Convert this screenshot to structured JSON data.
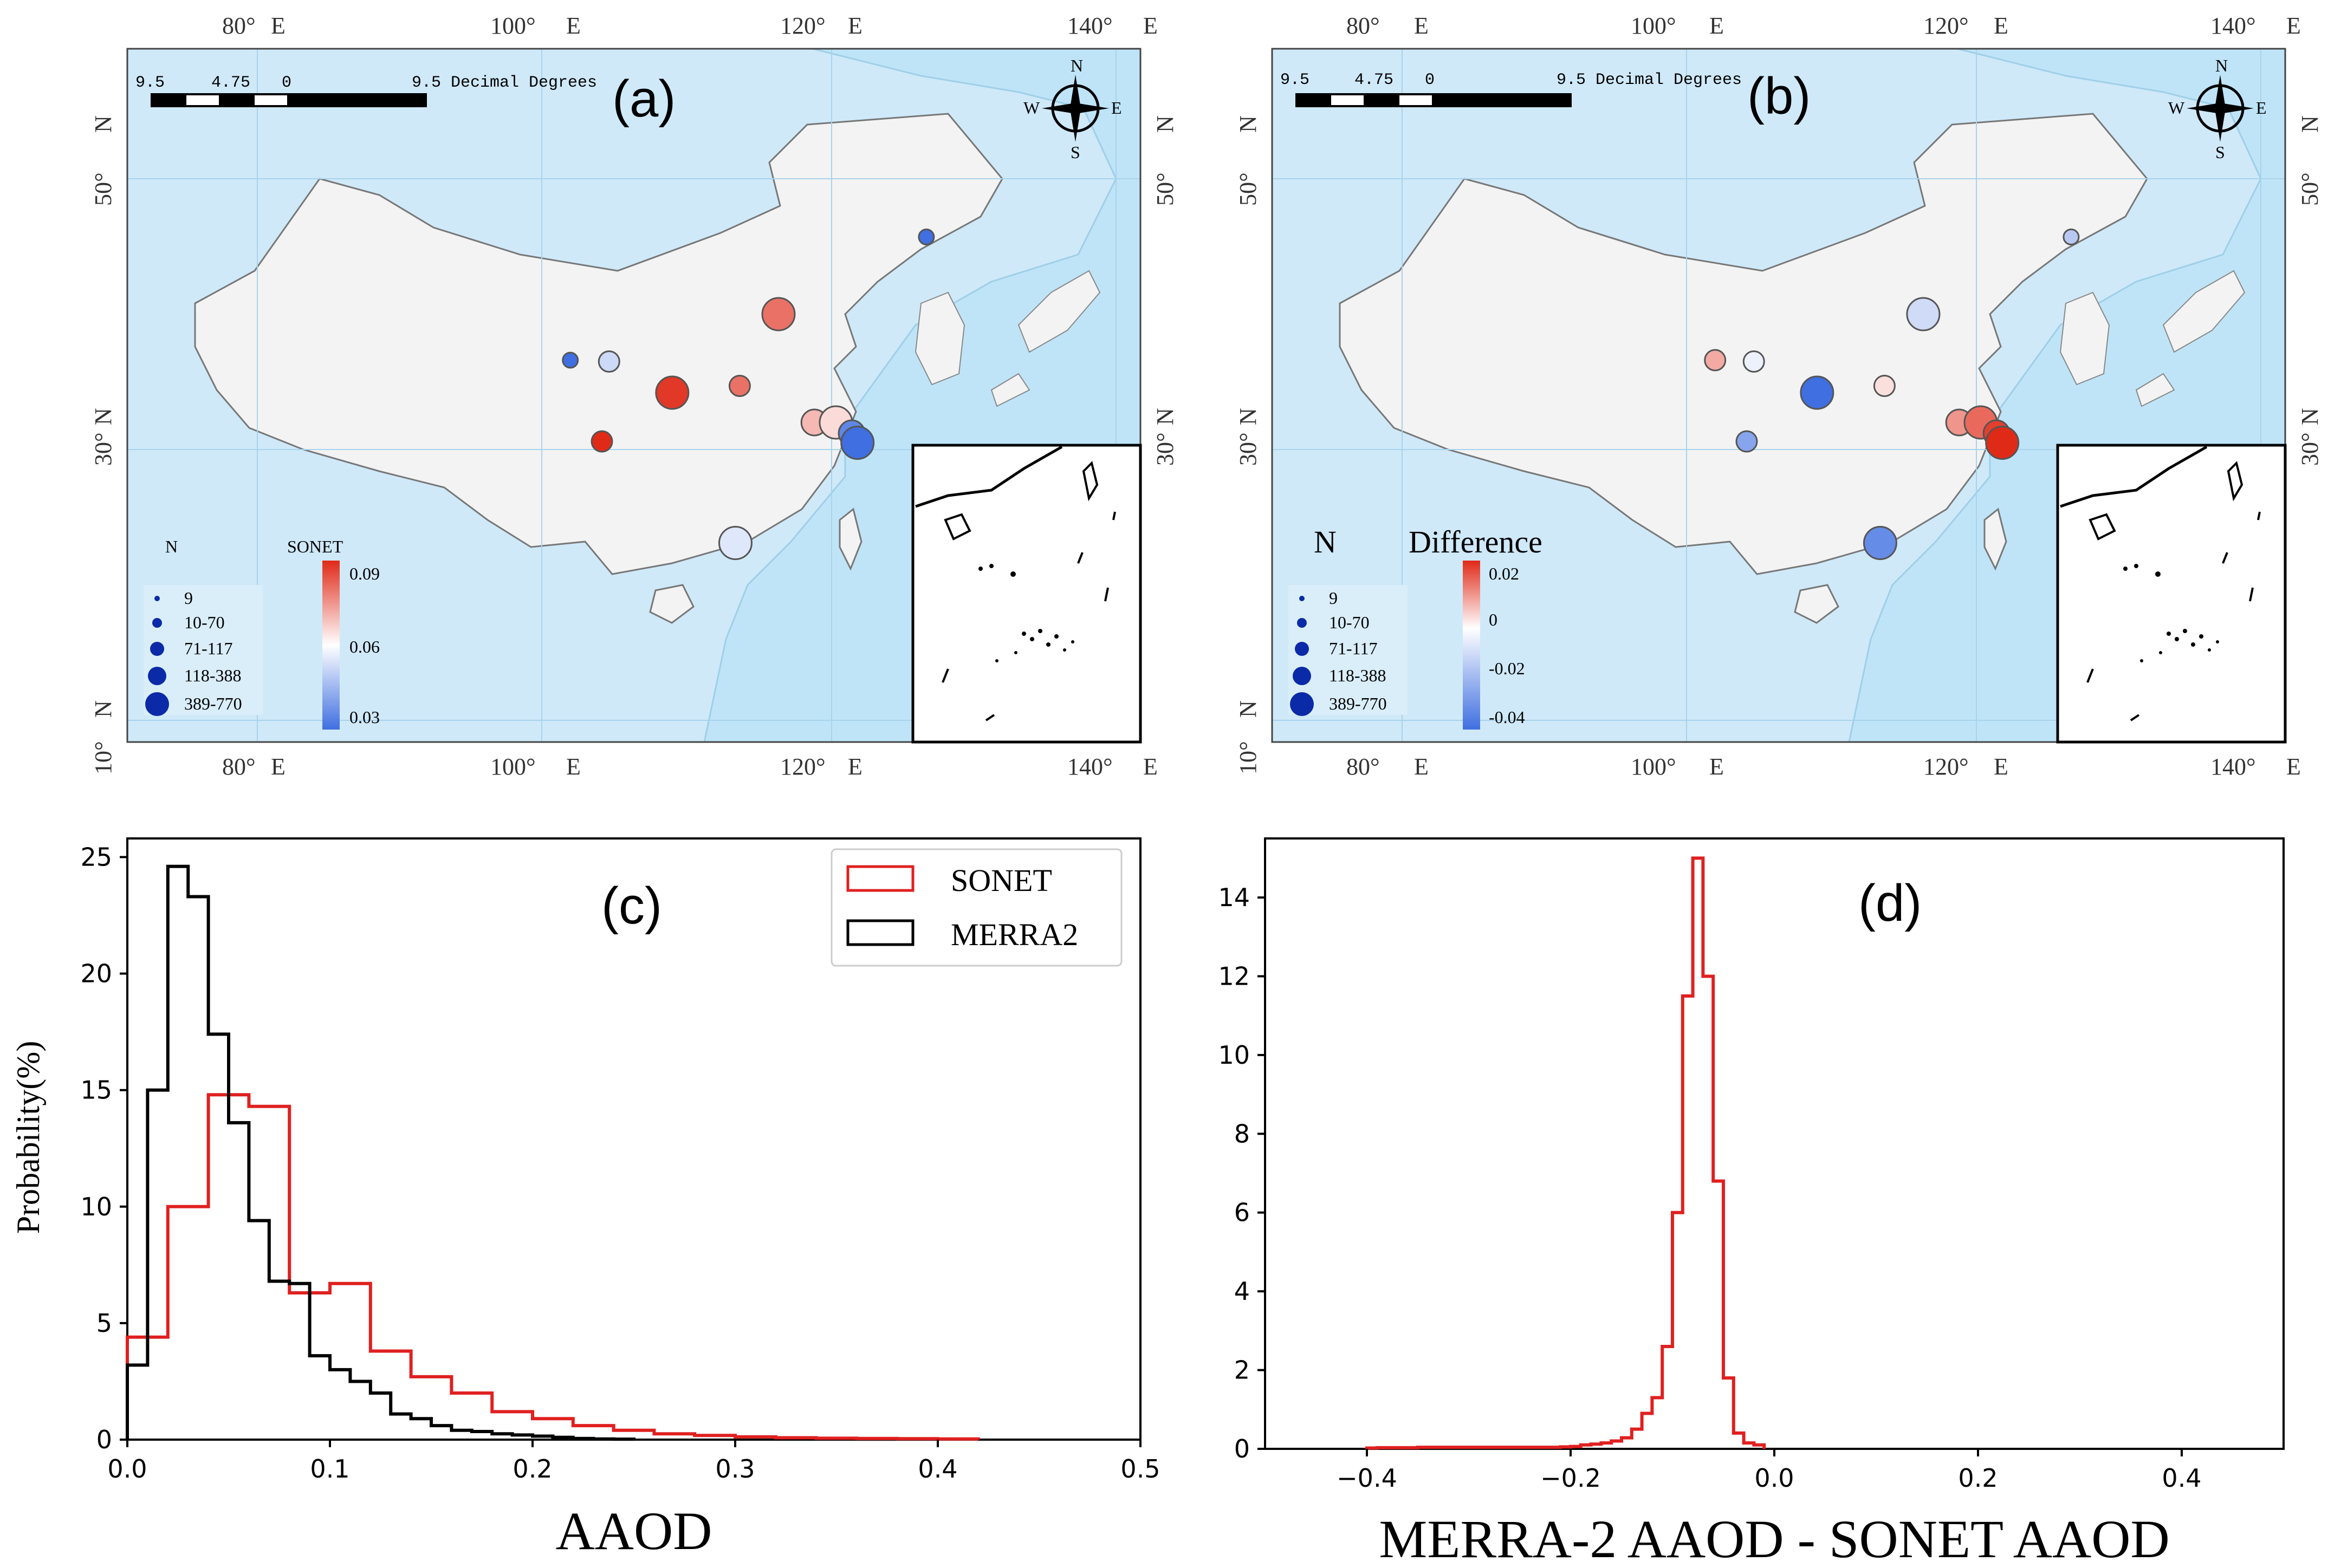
{
  "colors": {
    "ocean": "#bfe4f8",
    "land": "#f3f3f3",
    "neighbor": "#cfe9f9",
    "sonet": "#e02020",
    "merra2": "#000000",
    "low": "#3f6fe0",
    "high": "#e02a18"
  },
  "maps": [
    {
      "panel_label": "(a)",
      "lon_ticks": [
        "80°",
        "E",
        "100°",
        "E",
        "120°",
        "E",
        "140°",
        "E"
      ],
      "lat_ticks": [
        "50°",
        "N",
        "30°",
        "N",
        "10°",
        "N"
      ],
      "scale_labels": [
        "9.5",
        "4.75",
        "0",
        "9.5 Decimal Degrees"
      ],
      "compass": [
        "N",
        "E",
        "S",
        "W"
      ],
      "size_legend_title": "N",
      "size_legend": [
        "9",
        "10-70",
        "71-117",
        "118-388",
        "389-770"
      ],
      "colorbar_title": "SONET",
      "colorbar_ticks": [
        "0.09",
        "0.06",
        "0.03"
      ],
      "sites": [
        {
          "lon": 126.6,
          "lat": 45.7,
          "size": 1,
          "value": 0.028
        },
        {
          "lon": 101.8,
          "lat": 36.6,
          "size": 1,
          "value": 0.025
        },
        {
          "lon": 104.5,
          "lat": 36.5,
          "size": 2,
          "value": 0.052
        },
        {
          "lon": 116.3,
          "lat": 40.0,
          "size": 4,
          "value": 0.08
        },
        {
          "lon": 108.9,
          "lat": 34.2,
          "size": 4,
          "value": 0.088
        },
        {
          "lon": 113.6,
          "lat": 34.7,
          "size": 2,
          "value": 0.08
        },
        {
          "lon": 104.0,
          "lat": 30.6,
          "size": 2,
          "value": 0.092
        },
        {
          "lon": 118.8,
          "lat": 32.0,
          "size": 3,
          "value": 0.07
        },
        {
          "lon": 120.3,
          "lat": 32.0,
          "size": 4,
          "value": 0.065
        },
        {
          "lon": 121.4,
          "lat": 31.2,
          "size": 3,
          "value": 0.035
        },
        {
          "lon": 121.8,
          "lat": 30.5,
          "size": 4,
          "value": 0.03
        },
        {
          "lon": 113.3,
          "lat": 23.1,
          "size": 4,
          "value": 0.055
        }
      ]
    },
    {
      "panel_label": "(b)",
      "lon_ticks": [
        "80°",
        "E",
        "100°",
        "E",
        "120°",
        "E",
        "140°",
        "E"
      ],
      "lat_ticks": [
        "50°",
        "N",
        "30°",
        "N",
        "10°",
        "N"
      ],
      "scale_labels": [
        "9.5",
        "4.75",
        "0",
        "9.5 Decimal Degrees"
      ],
      "compass": [
        "N",
        "E",
        "S",
        "W"
      ],
      "size_legend_title": "N",
      "size_legend": [
        "9",
        "10-70",
        "71-117",
        "118-388",
        "389-770"
      ],
      "colorbar_title": "Difference",
      "colorbar_ticks": [
        "0.02",
        "0",
        "-0.02",
        "-0.04"
      ],
      "sites": [
        {
          "lon": 126.6,
          "lat": 45.7,
          "size": 1,
          "value": -0.015
        },
        {
          "lon": 101.8,
          "lat": 36.6,
          "size": 2,
          "value": 0.008
        },
        {
          "lon": 104.5,
          "lat": 36.5,
          "size": 2,
          "value": -0.004
        },
        {
          "lon": 116.3,
          "lat": 40.0,
          "size": 4,
          "value": -0.01
        },
        {
          "lon": 108.9,
          "lat": 34.2,
          "size": 4,
          "value": -0.04
        },
        {
          "lon": 113.6,
          "lat": 34.7,
          "size": 2,
          "value": 0.003
        },
        {
          "lon": 104.0,
          "lat": 30.6,
          "size": 2,
          "value": -0.025
        },
        {
          "lon": 118.8,
          "lat": 32.0,
          "size": 3,
          "value": 0.01
        },
        {
          "lon": 120.3,
          "lat": 32.0,
          "size": 4,
          "value": 0.014
        },
        {
          "lon": 121.4,
          "lat": 31.2,
          "size": 3,
          "value": 0.018
        },
        {
          "lon": 121.8,
          "lat": 30.5,
          "size": 4,
          "value": 0.024
        },
        {
          "lon": 113.3,
          "lat": 23.1,
          "size": 4,
          "value": -0.032
        }
      ]
    }
  ],
  "chart_data": [
    {
      "panel_label": "(c)",
      "type": "histogram",
      "xlabel": "AAOD",
      "ylabel": "Probability(%)",
      "xlim": [
        0.0,
        0.5
      ],
      "ylim": [
        0,
        25.8
      ],
      "xticks": [
        "0.0",
        "0.1",
        "0.2",
        "0.3",
        "0.4",
        "0.5"
      ],
      "yticks": [
        "0",
        "5",
        "10",
        "15",
        "20",
        "25"
      ],
      "bin_width": 0.01,
      "series": [
        {
          "name": "SONET",
          "color": "#e02020",
          "values": [
            4.4,
            4.4,
            10.0,
            10.0,
            14.8,
            14.8,
            14.3,
            14.3,
            6.3,
            6.3,
            6.7,
            6.7,
            3.8,
            3.8,
            2.7,
            2.7,
            2.0,
            2.0,
            1.2,
            1.2,
            0.9,
            0.9,
            0.6,
            0.6,
            0.4,
            0.4,
            0.25,
            0.25,
            0.18,
            0.18,
            0.12,
            0.12,
            0.08,
            0.08,
            0.06,
            0.06,
            0.05,
            0.05,
            0.04,
            0.04,
            0.03,
            0.03
          ]
        },
        {
          "name": "MERRA2",
          "color": "#000000",
          "values": [
            3.2,
            15.0,
            24.6,
            23.3,
            17.4,
            13.6,
            9.4,
            6.8,
            6.7,
            3.6,
            3.0,
            2.5,
            2.0,
            1.1,
            0.9,
            0.6,
            0.4,
            0.35,
            0.25,
            0.2,
            0.15,
            0.1,
            0.05,
            0.03,
            0.02
          ]
        }
      ]
    },
    {
      "panel_label": "(d)",
      "type": "histogram",
      "xlabel": "MERRA-2 AAOD - SONET AAOD",
      "ylabel": "",
      "xlim": [
        -0.5,
        0.5
      ],
      "ylim": [
        0,
        15.5
      ],
      "xticks": [
        "−0.4",
        "−0.2",
        "0.0",
        "0.2",
        "0.4"
      ],
      "yticks": [
        "0",
        "2",
        "4",
        "6",
        "8",
        "10",
        "12",
        "14"
      ],
      "bin_start": -0.4,
      "bin_width": 0.01,
      "series": [
        {
          "name": "MERRA-2 − SONET",
          "color": "#e02020",
          "values": [
            0.02,
            0.03,
            0.03,
            0.03,
            0.03,
            0.04,
            0.04,
            0.04,
            0.04,
            0.04,
            0.04,
            0.04,
            0.04,
            0.04,
            0.04,
            0.04,
            0.04,
            0.04,
            0.04,
            0.05,
            0.06,
            0.1,
            0.12,
            0.15,
            0.2,
            0.28,
            0.5,
            0.9,
            1.3,
            2.6,
            6.0,
            11.5,
            15.0,
            12.0,
            6.8,
            1.8,
            0.4,
            0.15,
            0.1
          ]
        }
      ]
    }
  ]
}
